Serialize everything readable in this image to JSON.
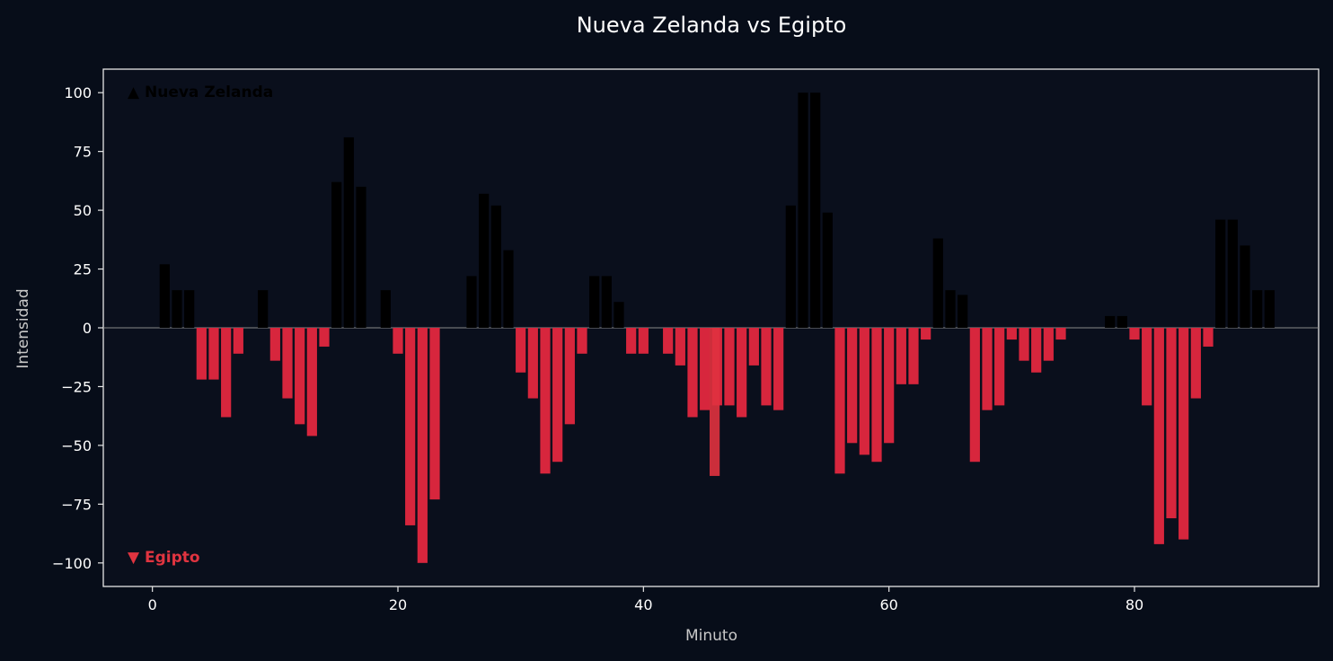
{
  "chart_data": {
    "type": "bar",
    "title": "Nueva Zelanda vs Egipto",
    "xlabel": "Minuto",
    "ylabel": "Intensidad",
    "xlim": [
      -4,
      95
    ],
    "ylim": [
      -110,
      110
    ],
    "xticks": [
      0,
      20,
      40,
      60,
      80
    ],
    "yticks": [
      -100,
      -75,
      -50,
      -25,
      0,
      25,
      50,
      75,
      100
    ],
    "grid": false,
    "series": [
      {
        "name": "▲ Nueva Zelanda",
        "color": "#000000",
        "x": [
          1,
          2,
          3,
          9,
          15,
          16,
          17,
          19,
          26,
          27,
          28,
          29,
          36,
          37,
          38,
          52,
          53,
          54,
          55,
          64,
          65,
          66,
          78,
          79,
          87,
          88,
          89,
          90,
          91
        ],
        "values": [
          27,
          16,
          16,
          16,
          62,
          81,
          60,
          16,
          22,
          57,
          52,
          33,
          22,
          22,
          11,
          52,
          100,
          100,
          49,
          38,
          16,
          14,
          5,
          5,
          46,
          46,
          35,
          16,
          16
        ]
      },
      {
        "name": "▼ Egipto",
        "color": "#d7263d",
        "x": [
          4,
          5,
          6,
          7,
          10,
          11,
          12,
          13,
          14,
          20,
          21,
          22,
          23,
          30,
          31,
          32,
          33,
          34,
          35,
          39,
          40,
          42,
          43,
          44,
          45,
          46,
          47,
          48,
          49,
          50,
          51,
          56,
          57,
          58,
          59,
          60,
          61,
          62,
          63,
          67,
          68,
          69,
          70,
          71,
          72,
          73,
          74,
          80,
          81,
          82,
          83,
          84,
          85,
          86
        ],
        "values": [
          -22,
          -22,
          -38,
          -11,
          -14,
          -30,
          -41,
          -46,
          -8,
          -11,
          -84,
          -100,
          -73,
          -19,
          -30,
          -62,
          -57,
          -41,
          -11,
          -11,
          -11,
          -11,
          -16,
          -38,
          -35,
          -33,
          -33,
          -38,
          -16,
          -33,
          -35,
          -62,
          -49,
          -54,
          -57,
          -49,
          -24,
          -24,
          -5,
          -57,
          -35,
          -33,
          -5,
          -14,
          -19,
          -14,
          -5,
          -5,
          -33,
          -92,
          -81,
          -90,
          -30,
          -8
        ]
      },
      {
        "name": "",
        "color": "#e0323f",
        "x": [
          45.8
        ],
        "values": [
          -63
        ]
      }
    ]
  }
}
